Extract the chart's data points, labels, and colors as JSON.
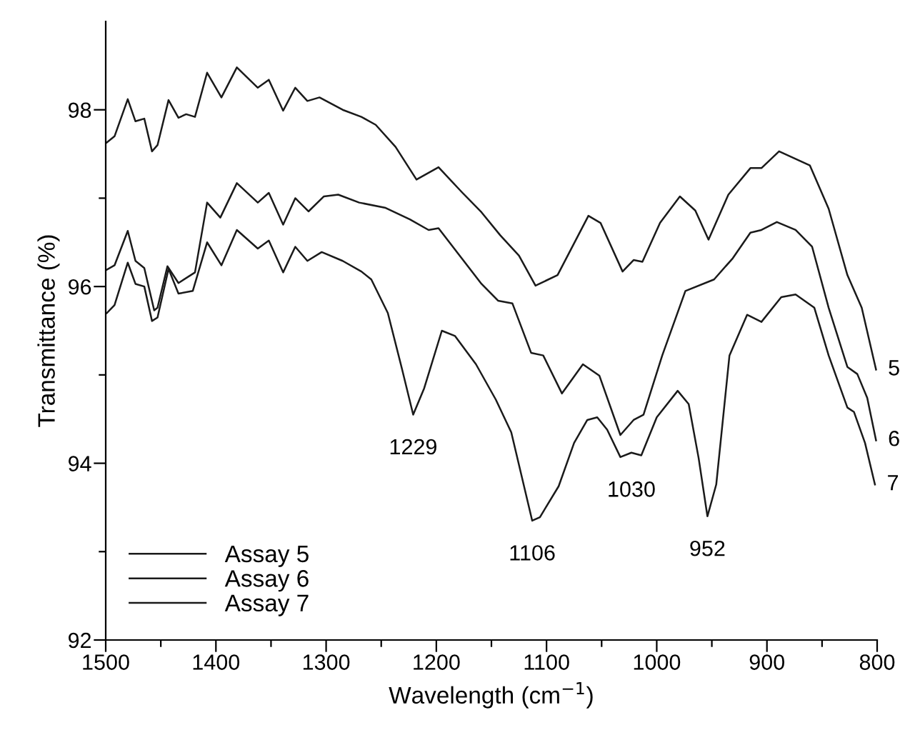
{
  "chart_data": {
    "type": "line",
    "xlabel": "Wavelength (cm$^{−1}$)",
    "ylabel": "Transmittance (%)",
    "xlim": [
      1500,
      800
    ],
    "ylim": [
      92,
      99
    ],
    "xticks": [
      1500,
      {
        "value": 1450,
        "label": null
      },
      1400,
      {
        "value": 1350,
        "label": null
      },
      1300,
      {
        "value": 1250,
        "label": null
      },
      1200,
      {
        "value": 1150,
        "label": null
      },
      1100,
      {
        "value": 1050,
        "label": null
      },
      1000,
      {
        "value": 950,
        "label": null
      },
      900,
      {
        "value": 850,
        "label": null
      },
      800
    ],
    "yticks": [
      92,
      {
        "value": 93,
        "label": null
      },
      94,
      {
        "value": 95,
        "label": null
      },
      96,
      {
        "value": 97,
        "label": null
      },
      98
    ],
    "grid": false,
    "legend": "bottom left",
    "line_style": "solid",
    "marker": "none",
    "series": [
      {
        "name": "Assay 5",
        "color": "#1a1a1a",
        "x": [
          1499,
          1492,
          1480,
          1473,
          1465,
          1458,
          1453,
          1443,
          1434,
          1427,
          1419,
          1408,
          1395,
          1381,
          1362,
          1352,
          1339,
          1328,
          1317,
          1306,
          1285,
          1268,
          1255,
          1237,
          1218,
          1198,
          1177,
          1159,
          1142,
          1125,
          1110,
          1090,
          1062,
          1051,
          1031,
          1021,
          1013,
          997,
          979,
          965,
          953,
          935,
          915,
          905,
          889,
          861,
          844,
          827,
          814,
          801
        ],
        "values": [
          97.63,
          97.7,
          98.12,
          97.87,
          97.9,
          97.53,
          97.6,
          98.11,
          97.91,
          97.95,
          97.92,
          98.42,
          98.14,
          98.48,
          98.25,
          98.34,
          97.99,
          98.25,
          98.1,
          98.14,
          98.0,
          97.92,
          97.83,
          97.58,
          97.21,
          97.35,
          97.07,
          96.84,
          96.58,
          96.35,
          96.01,
          96.13,
          96.8,
          96.72,
          96.17,
          96.3,
          96.28,
          96.72,
          97.02,
          96.86,
          96.53,
          97.04,
          97.34,
          97.34,
          97.53,
          97.37,
          96.88,
          96.13,
          95.76,
          95.06
        ]
      },
      {
        "name": "Assay 6",
        "color": "#1a1a1a",
        "x": [
          1499,
          1492,
          1480,
          1473,
          1465,
          1456,
          1453,
          1444,
          1434,
          1419,
          1408,
          1396,
          1381,
          1362,
          1352,
          1339,
          1328,
          1316,
          1302,
          1289,
          1270,
          1246,
          1224,
          1207,
          1198,
          1177,
          1159,
          1144,
          1131,
          1114,
          1103,
          1086,
          1067,
          1052,
          1033,
          1021,
          1012,
          995,
          974,
          948,
          931,
          915,
          905,
          891,
          874,
          859,
          844,
          827,
          818,
          809,
          801
        ],
        "values": [
          96.19,
          96.24,
          96.63,
          96.29,
          96.21,
          95.73,
          95.76,
          96.23,
          96.04,
          96.16,
          96.95,
          96.78,
          97.17,
          96.95,
          97.06,
          96.7,
          97.0,
          96.85,
          97.02,
          97.04,
          96.95,
          96.89,
          96.76,
          96.64,
          96.66,
          96.32,
          96.03,
          95.84,
          95.81,
          95.25,
          95.22,
          94.79,
          95.12,
          94.99,
          94.32,
          94.49,
          94.55,
          95.22,
          95.95,
          96.08,
          96.32,
          96.61,
          96.64,
          96.73,
          96.64,
          96.45,
          95.76,
          95.09,
          95.01,
          94.74,
          94.26
        ]
      },
      {
        "name": "Assay 7",
        "color": "#1a1a1a",
        "x": [
          1499,
          1492,
          1480,
          1473,
          1465,
          1458,
          1453,
          1443,
          1434,
          1421,
          1408,
          1395,
          1381,
          1362,
          1352,
          1339,
          1328,
          1317,
          1304,
          1285,
          1268,
          1259,
          1244,
          1231,
          1221,
          1211,
          1195,
          1183,
          1164,
          1146,
          1132,
          1113,
          1106,
          1089,
          1075,
          1063,
          1054,
          1045,
          1033,
          1023,
          1014,
          1000,
          981,
          971,
          962,
          954,
          946,
          934,
          918,
          905,
          887,
          874,
          857,
          844,
          827,
          821,
          811,
          802
        ],
        "values": [
          95.7,
          95.79,
          96.27,
          96.03,
          96.0,
          95.61,
          95.65,
          96.2,
          95.92,
          95.95,
          96.5,
          96.24,
          96.64,
          96.43,
          96.52,
          96.16,
          96.45,
          96.29,
          96.39,
          96.29,
          96.17,
          96.08,
          95.7,
          95.06,
          94.55,
          94.85,
          95.5,
          95.44,
          95.12,
          94.72,
          94.35,
          93.35,
          93.39,
          93.74,
          94.23,
          94.49,
          94.52,
          94.38,
          94.07,
          94.12,
          94.09,
          94.52,
          94.82,
          94.67,
          94.06,
          93.4,
          93.76,
          95.22,
          95.68,
          95.6,
          95.88,
          95.91,
          95.76,
          95.22,
          94.63,
          94.58,
          94.23,
          93.76
        ]
      }
    ],
    "annotations": [
      {
        "text": "5",
        "x": 801,
        "y": 95.06
      },
      {
        "text": "6",
        "x": 801,
        "y": 94.26
      },
      {
        "text": "7",
        "x": 802,
        "y": 93.76
      },
      {
        "text": "1229",
        "x": 1221,
        "y": 94.55
      },
      {
        "text": "1106",
        "x": 1113,
        "y": 93.35
      },
      {
        "text": "1030",
        "x": 1023,
        "y": 94.07
      },
      {
        "text": "952",
        "x": 954,
        "y": 93.4
      }
    ]
  }
}
